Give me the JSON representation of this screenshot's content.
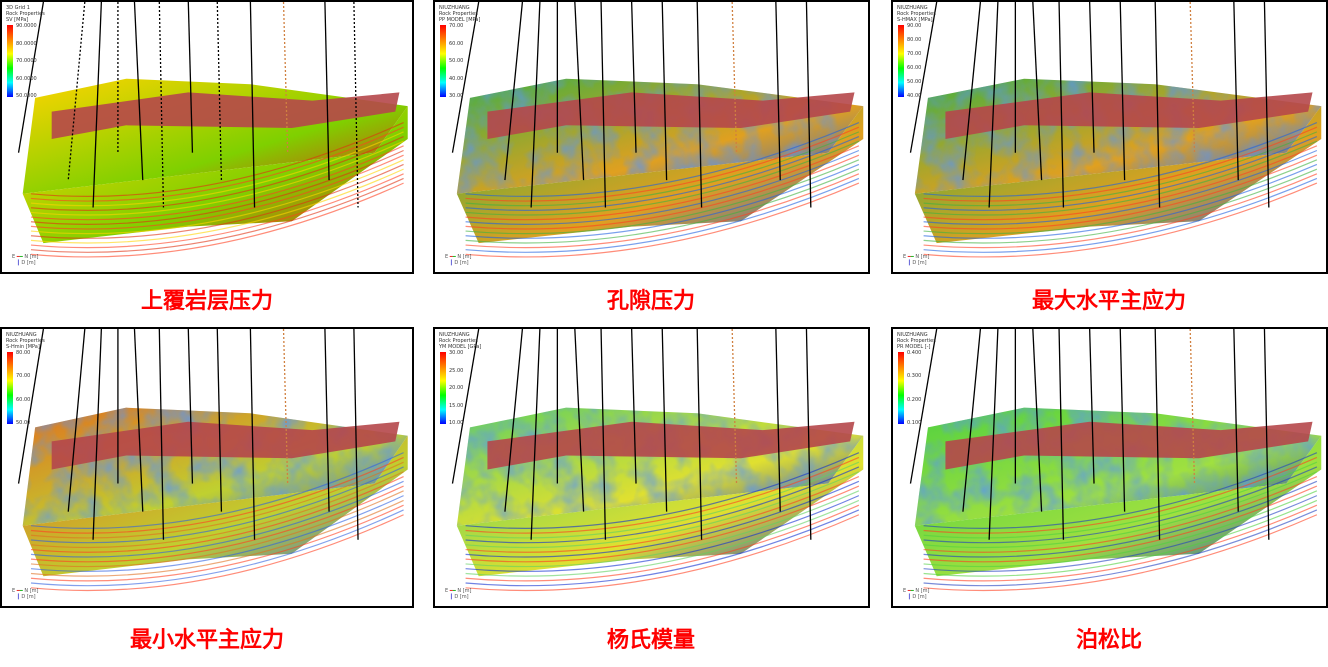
{
  "panels": [
    {
      "caption": "上覆岩层压力",
      "legend": {
        "lines": [
          "3D Grid 1",
          "Rock Properties",
          "SV [MPa]"
        ],
        "ticks": [
          "90.0000",
          "80.0000",
          "70.0000",
          "60.0000",
          "50.0000"
        ]
      },
      "style": "smooth"
    },
    {
      "caption": "孔隙压力",
      "legend": {
        "lines": [
          "NIUZHUANG",
          "Rock Properties",
          "PP MODEL [MPa]"
        ],
        "ticks": [
          "70.00",
          "60.00",
          "50.00",
          "40.00",
          "30.00"
        ]
      },
      "style": "mixed"
    },
    {
      "caption": "最大水平主应力",
      "legend": {
        "lines": [
          "NIUZHUANG",
          "Rock Properties",
          "S-HMAX [MPa]"
        ],
        "ticks": [
          "90.00",
          "80.00",
          "70.00",
          "60.00",
          "50.00",
          "40.00"
        ]
      },
      "style": "mixed"
    },
    {
      "caption": "最小水平主应力",
      "legend": {
        "lines": [
          "NIUZHUANG",
          "Rock Properties",
          "S-Hmin [MPa]"
        ],
        "ticks": [
          "80.00",
          "70.00",
          "60.00",
          "50.00"
        ]
      },
      "style": "warm"
    },
    {
      "caption": "杨氏模量",
      "legend": {
        "lines": [
          "NIUZHUANG",
          "Rock Properties",
          "YM MODEL [GPa]"
        ],
        "ticks": [
          "30.00",
          "25.00",
          "20.00",
          "15.00",
          "10.00"
        ]
      },
      "style": "cool"
    },
    {
      "caption": "泊松比",
      "legend": {
        "lines": [
          "NIUZHUANG",
          "Rock Properties",
          "PR MODEL [-]"
        ],
        "ticks": [
          "0.400",
          "0.300",
          "0.200",
          "0.100"
        ]
      },
      "style": "green"
    }
  ],
  "axis": {
    "e": "E",
    "n": "N [m]",
    "d": "D [m]"
  },
  "colors": {
    "caption": "#ff0000",
    "fault_wall": "#b5474a"
  }
}
